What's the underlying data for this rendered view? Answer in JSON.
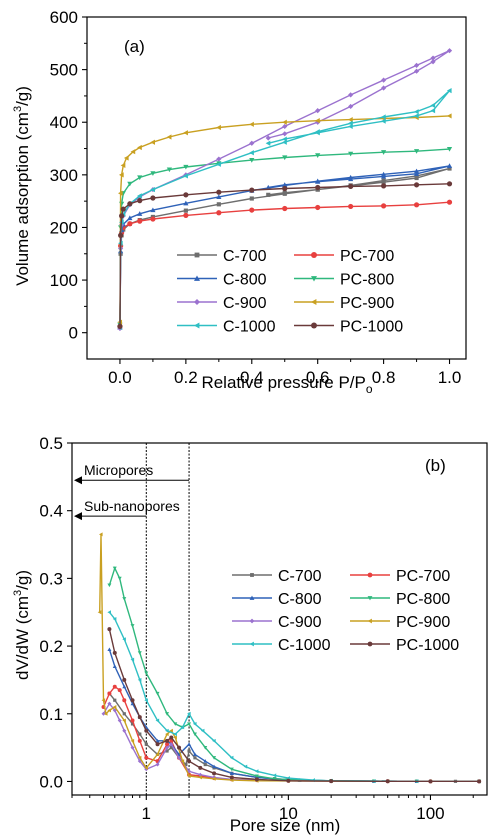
{
  "colors": {
    "C-700": "#6e6e6e",
    "PC-700": "#e8403f",
    "C-800": "#2f62b8",
    "PC-800": "#2fb87d",
    "C-900": "#9b72cf",
    "PC-900": "#c9a021",
    "C-1000": "#2fbfc4",
    "PC-1000": "#6a3a3a"
  },
  "chart_data": [
    {
      "type": "line",
      "panel_label": "(a)",
      "xlabel": "Relative pressure P/P",
      "xlabel_sub": "o",
      "ylabel_pre": "Volume adsorption (cm",
      "ylabel_sup": "3",
      "ylabel_post": "/g)",
      "xlim": [
        -0.1,
        1.05
      ],
      "ylim": [
        -50,
        600
      ],
      "xticks": [
        "0.0",
        "0.2",
        "0.4",
        "0.6",
        "0.8",
        "1.0"
      ],
      "xtick_values": [
        0,
        0.2,
        0.4,
        0.6,
        0.8,
        1.0
      ],
      "yticks": [
        "0",
        "100",
        "200",
        "300",
        "400",
        "500",
        "600"
      ],
      "ytick_values": [
        0,
        100,
        200,
        300,
        400,
        500,
        600
      ],
      "legend_position": "lower-right",
      "series": [
        {
          "name": "C-700",
          "x": [
            0.0,
            0.002,
            0.005,
            0.01,
            0.03,
            0.06,
            0.1,
            0.2,
            0.3,
            0.4,
            0.5,
            0.6,
            0.7,
            0.8,
            0.9,
            1.0,
            0.9,
            0.8,
            0.7,
            0.6,
            0.5,
            0.45
          ],
          "y": [
            10,
            150,
            185,
            196,
            207,
            214,
            220,
            232,
            244,
            255,
            264,
            272,
            280,
            289,
            298,
            312,
            294,
            286,
            279,
            272,
            266,
            262
          ]
        },
        {
          "name": "PC-700",
          "x": [
            0.0,
            0.002,
            0.005,
            0.01,
            0.03,
            0.06,
            0.1,
            0.2,
            0.3,
            0.4,
            0.5,
            0.6,
            0.7,
            0.8,
            0.9,
            1.0
          ],
          "y": [
            12,
            165,
            190,
            200,
            207,
            212,
            216,
            223,
            228,
            233,
            236,
            238,
            240,
            241,
            243,
            248
          ]
        },
        {
          "name": "C-800",
          "x": [
            0.0,
            0.002,
            0.005,
            0.01,
            0.03,
            0.06,
            0.1,
            0.2,
            0.3,
            0.4,
            0.5,
            0.6,
            0.7,
            0.8,
            0.9,
            1.0,
            0.9,
            0.8,
            0.7,
            0.6,
            0.5,
            0.45
          ],
          "y": [
            10,
            155,
            195,
            206,
            218,
            226,
            233,
            246,
            258,
            270,
            280,
            288,
            295,
            301,
            307,
            317,
            302,
            297,
            292,
            287,
            281,
            276
          ]
        },
        {
          "name": "PC-800",
          "x": [
            0.0,
            0.002,
            0.005,
            0.01,
            0.03,
            0.06,
            0.1,
            0.15,
            0.2,
            0.3,
            0.4,
            0.5,
            0.6,
            0.7,
            0.8,
            0.9,
            1.0
          ],
          "y": [
            15,
            200,
            245,
            265,
            283,
            295,
            303,
            310,
            315,
            322,
            328,
            333,
            337,
            340,
            343,
            345,
            349
          ]
        },
        {
          "name": "C-900",
          "x": [
            0.0,
            0.002,
            0.005,
            0.01,
            0.03,
            0.06,
            0.1,
            0.2,
            0.3,
            0.4,
            0.5,
            0.6,
            0.7,
            0.8,
            0.9,
            0.95,
            1.0,
            0.95,
            0.9,
            0.8,
            0.7,
            0.6,
            0.5,
            0.45
          ],
          "y": [
            8,
            160,
            205,
            222,
            243,
            258,
            272,
            300,
            330,
            360,
            392,
            422,
            452,
            480,
            508,
            522,
            536,
            515,
            497,
            465,
            430,
            400,
            378,
            370
          ]
        },
        {
          "name": "PC-900",
          "x": [
            0.0,
            0.002,
            0.005,
            0.01,
            0.02,
            0.04,
            0.06,
            0.1,
            0.15,
            0.2,
            0.3,
            0.4,
            0.5,
            0.6,
            0.7,
            0.8,
            0.9,
            1.0
          ],
          "y": [
            20,
            265,
            300,
            318,
            332,
            344,
            352,
            362,
            372,
            380,
            390,
            396,
            400,
            403,
            405,
            407,
            409,
            412
          ]
        },
        {
          "name": "C-1000",
          "x": [
            0.0,
            0.002,
            0.005,
            0.01,
            0.03,
            0.06,
            0.1,
            0.2,
            0.3,
            0.4,
            0.5,
            0.6,
            0.7,
            0.8,
            0.9,
            0.95,
            1.0,
            0.95,
            0.9,
            0.8,
            0.7,
            0.6,
            0.5,
            0.45
          ],
          "y": [
            10,
            170,
            210,
            225,
            245,
            260,
            272,
            298,
            320,
            342,
            362,
            382,
            398,
            410,
            420,
            432,
            460,
            422,
            412,
            402,
            392,
            380,
            368,
            360
          ]
        },
        {
          "name": "PC-1000",
          "x": [
            0.0,
            0.002,
            0.005,
            0.01,
            0.03,
            0.06,
            0.1,
            0.2,
            0.3,
            0.4,
            0.5,
            0.6,
            0.7,
            0.8,
            0.9,
            1.0
          ],
          "y": [
            12,
            185,
            222,
            235,
            245,
            251,
            256,
            262,
            267,
            271,
            274,
            276,
            278,
            279,
            281,
            283
          ]
        }
      ]
    },
    {
      "type": "line",
      "panel_label": "(b)",
      "xlabel": "Pore size (nm)",
      "ylabel_pre": "dV/dW (cm",
      "ylabel_sup": "3",
      "ylabel_post": "/g)",
      "xscale": "log",
      "xlim": [
        0.3,
        250
      ],
      "ylim": [
        -0.02,
        0.5
      ],
      "xticks": [
        "1",
        "10",
        "100"
      ],
      "xtick_values": [
        1,
        10,
        100
      ],
      "yticks": [
        "0.0",
        "0.1",
        "0.2",
        "0.3",
        "0.4",
        "0.5"
      ],
      "ytick_values": [
        0,
        0.1,
        0.2,
        0.3,
        0.4,
        0.5
      ],
      "legend_position": "right",
      "annotations": [
        {
          "text": "Micropores",
          "x_end": 2.0,
          "y": 0.445
        },
        {
          "text": "Sub-nanopores",
          "x_end": 1.0,
          "y": 0.392
        }
      ],
      "vlines": [
        1.0,
        2.0
      ],
      "series": [
        {
          "name": "C-700",
          "x": [
            0.55,
            0.6,
            0.7,
            0.8,
            0.9,
            1.0,
            1.2,
            1.4,
            1.5,
            1.7,
            1.9,
            2.0,
            2.2,
            2.6,
            3,
            4,
            6,
            8,
            12,
            20,
            40,
            80,
            150,
            220
          ],
          "y": [
            0.13,
            0.12,
            0.1,
            0.085,
            0.07,
            0.055,
            0.04,
            0.045,
            0.05,
            0.035,
            0.025,
            0.045,
            0.035,
            0.025,
            0.02,
            0.012,
            0.006,
            0.004,
            0.002,
            0.001,
            0.0005,
            0.0003,
            0.0002,
            0.0002
          ]
        },
        {
          "name": "PC-700",
          "x": [
            0.5,
            0.55,
            0.6,
            0.65,
            0.7,
            0.8,
            0.9,
            1.0,
            1.2,
            1.4,
            1.5,
            1.7,
            2.0,
            2.4,
            3,
            4,
            6,
            10,
            20,
            50,
            100,
            220
          ],
          "y": [
            0.11,
            0.13,
            0.14,
            0.135,
            0.12,
            0.09,
            0.06,
            0.035,
            0.03,
            0.055,
            0.06,
            0.035,
            0.01,
            0.008,
            0.005,
            0.003,
            0.002,
            0.001,
            0.0005,
            0.0003,
            0.0002,
            0.0002
          ]
        },
        {
          "name": "C-800",
          "x": [
            0.55,
            0.6,
            0.7,
            0.8,
            0.9,
            1.0,
            1.2,
            1.4,
            1.5,
            1.7,
            2.0,
            2.2,
            2.6,
            3,
            4,
            6,
            8,
            12,
            20,
            40,
            80,
            220
          ],
          "y": [
            0.195,
            0.17,
            0.14,
            0.115,
            0.095,
            0.08,
            0.06,
            0.06,
            0.055,
            0.04,
            0.055,
            0.04,
            0.03,
            0.022,
            0.012,
            0.006,
            0.004,
            0.002,
            0.001,
            0.0005,
            0.0003,
            0.0002
          ]
        },
        {
          "name": "PC-800",
          "x": [
            0.55,
            0.6,
            0.65,
            0.7,
            0.8,
            0.9,
            1.0,
            1.2,
            1.4,
            1.6,
            1.8,
            2.0,
            2.2,
            2.6,
            3,
            4,
            6,
            8,
            12,
            20,
            40,
            80,
            220
          ],
          "y": [
            0.29,
            0.315,
            0.3,
            0.27,
            0.23,
            0.19,
            0.16,
            0.13,
            0.1,
            0.085,
            0.08,
            0.085,
            0.07,
            0.05,
            0.035,
            0.018,
            0.008,
            0.004,
            0.002,
            0.001,
            0.0005,
            0.0003,
            0.0002
          ]
        },
        {
          "name": "C-900",
          "x": [
            0.5,
            0.55,
            0.6,
            0.65,
            0.7,
            0.8,
            0.9,
            1.0,
            1.2,
            1.4,
            1.5,
            1.7,
            2.0,
            2.4,
            3,
            4,
            6,
            10,
            20,
            50,
            100,
            220
          ],
          "y": [
            0.1,
            0.115,
            0.105,
            0.09,
            0.075,
            0.05,
            0.03,
            0.018,
            0.025,
            0.05,
            0.055,
            0.035,
            0.015,
            0.01,
            0.006,
            0.003,
            0.002,
            0.001,
            0.0005,
            0.0003,
            0.0002,
            0.0002
          ]
        },
        {
          "name": "PC-900",
          "x": [
            0.47,
            0.48,
            0.5,
            0.52,
            0.55,
            0.6,
            0.7,
            0.8,
            0.9,
            1.0,
            1.2,
            1.4,
            1.5,
            1.6,
            1.8,
            2.0,
            2.4,
            3,
            4,
            6,
            10,
            20,
            50,
            100,
            220
          ],
          "y": [
            0.25,
            0.365,
            0.12,
            0.1,
            0.105,
            0.11,
            0.09,
            0.06,
            0.035,
            0.02,
            0.04,
            0.07,
            0.075,
            0.065,
            0.03,
            0.008,
            0.006,
            0.004,
            0.002,
            0.001,
            0.0008,
            0.0005,
            0.0003,
            0.0002,
            0.0002
          ]
        },
        {
          "name": "C-1000",
          "x": [
            0.55,
            0.6,
            0.7,
            0.8,
            0.9,
            1.0,
            1.2,
            1.4,
            1.6,
            1.8,
            2.0,
            2.2,
            2.5,
            3,
            4,
            5,
            6,
            8,
            10,
            15,
            20,
            40,
            80,
            220
          ],
          "y": [
            0.25,
            0.24,
            0.21,
            0.18,
            0.15,
            0.12,
            0.09,
            0.075,
            0.07,
            0.08,
            0.1,
            0.085,
            0.075,
            0.06,
            0.035,
            0.022,
            0.015,
            0.009,
            0.005,
            0.002,
            0.001,
            0.0005,
            0.0003,
            0.0002
          ]
        },
        {
          "name": "PC-1000",
          "x": [
            0.55,
            0.6,
            0.7,
            0.8,
            0.9,
            1.0,
            1.2,
            1.4,
            1.5,
            1.7,
            2.0,
            2.4,
            3,
            4,
            6,
            10,
            20,
            50,
            100,
            220
          ],
          "y": [
            0.225,
            0.19,
            0.15,
            0.12,
            0.095,
            0.075,
            0.055,
            0.06,
            0.065,
            0.05,
            0.03,
            0.02,
            0.012,
            0.006,
            0.003,
            0.001,
            0.0005,
            0.0003,
            0.0002,
            0.0002
          ]
        }
      ]
    }
  ]
}
